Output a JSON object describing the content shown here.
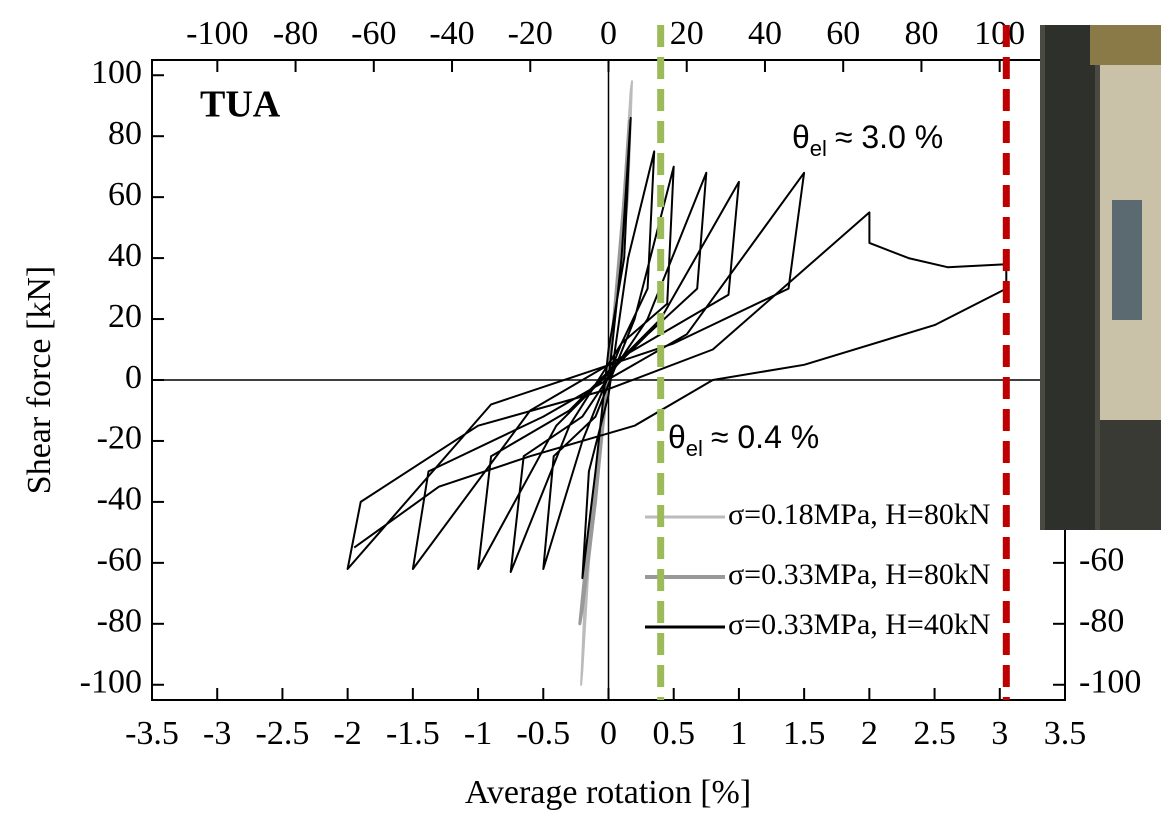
{
  "chart_data": {
    "type": "line",
    "title": "TUA",
    "x_label": "Average rotation [%]",
    "y_label": "Shear force [kN]",
    "xlim": [
      -3.5,
      3.5
    ],
    "xticks": [
      -3.5,
      -3,
      -2.5,
      -2,
      -1.5,
      -1,
      -0.5,
      0,
      0.5,
      1,
      1.5,
      2,
      2.5,
      3,
      3.5
    ],
    "ylim": [
      -105,
      105
    ],
    "yticks": [
      -100,
      -80,
      -60,
      -40,
      -20,
      0,
      20,
      40,
      60,
      80,
      100
    ],
    "x2lim": [
      -116.7,
      116.7
    ],
    "x2ticks": [
      -100,
      -80,
      -60,
      -40,
      -20,
      0,
      20,
      40,
      60,
      80,
      100
    ],
    "y2lim": [
      -105,
      105
    ],
    "y2ticks": [
      -100,
      -80,
      -60
    ],
    "grid": false,
    "zero_lines": true,
    "reference_lines": [
      {
        "x": 0.4,
        "color": "#9bbb59",
        "text_color": "#77933c",
        "symbol": "θ",
        "subscript": "el",
        "label": "≈ 0.4 %"
      },
      {
        "x": 3.05,
        "color": "#c00000",
        "text_color": "#c00000",
        "symbol": "θ",
        "subscript": "el",
        "label": "≈ 3.0 %"
      }
    ],
    "series": [
      {
        "name": "σ=0.18MPa, H=80kN",
        "color": "#bbbbbb",
        "width": 2,
        "x": [
          0,
          0.1,
          0.17,
          0.18,
          0.15,
          0.05,
          -0.05,
          -0.15,
          -0.2,
          -0.21,
          -0.18,
          -0.05,
          0
        ],
        "values": [
          0,
          50,
          95,
          98,
          60,
          20,
          -20,
          -60,
          -95,
          -100,
          -70,
          -15,
          0
        ]
      },
      {
        "name": "σ=0.33MPa, H=80kN",
        "color": "#999999",
        "width": 3,
        "x": [
          0,
          0.12,
          0.16,
          0.1,
          0,
          -0.1,
          -0.2,
          -0.22,
          -0.15,
          0
        ],
        "values": [
          0,
          60,
          85,
          40,
          5,
          -40,
          -75,
          -80,
          -50,
          0
        ]
      },
      {
        "name": "σ=0.33MPa, H=40kN",
        "color": "#000000",
        "width": 2,
        "x": [
          0,
          0.1,
          0.17,
          0.12,
          0,
          -0.1,
          -0.2,
          -0.15,
          0,
          0.15,
          0.35,
          0.3,
          0.1,
          -0.2,
          -0.5,
          -0.42,
          -0.1,
          0.2,
          0.5,
          0.45,
          0.1,
          -0.3,
          -0.75,
          -0.65,
          -0.2,
          0.3,
          0.75,
          0.68,
          0.3,
          -0.4,
          -1.0,
          -0.9,
          -0.3,
          0.4,
          1.0,
          0.92,
          0.4,
          -0.6,
          -1.5,
          -1.38,
          -0.5,
          0.6,
          1.5,
          1.38,
          0.5,
          -0.9,
          -2.0,
          -1.9,
          -1.0,
          0,
          0.8,
          2.0,
          2.0,
          2.3,
          2.6,
          3.05,
          3.05,
          2.5,
          1.5,
          0.8,
          0.2,
          -0.6,
          -1.3,
          -1.95
        ],
        "values": [
          0,
          40,
          86,
          40,
          10,
          -30,
          -65,
          -30,
          -5,
          40,
          75,
          30,
          12,
          -20,
          -62,
          -25,
          -12,
          20,
          70,
          25,
          12,
          -15,
          -63,
          -25,
          -12,
          20,
          68,
          30,
          15,
          -15,
          -62,
          -25,
          -10,
          20,
          65,
          28,
          15,
          -10,
          -62,
          -30,
          -12,
          15,
          68,
          30,
          12,
          -8,
          -62,
          -40,
          -15,
          -3,
          10,
          55,
          45,
          40,
          37,
          38,
          30,
          18,
          5,
          0,
          -15,
          -25,
          -35,
          -55
        ]
      }
    ]
  }
}
